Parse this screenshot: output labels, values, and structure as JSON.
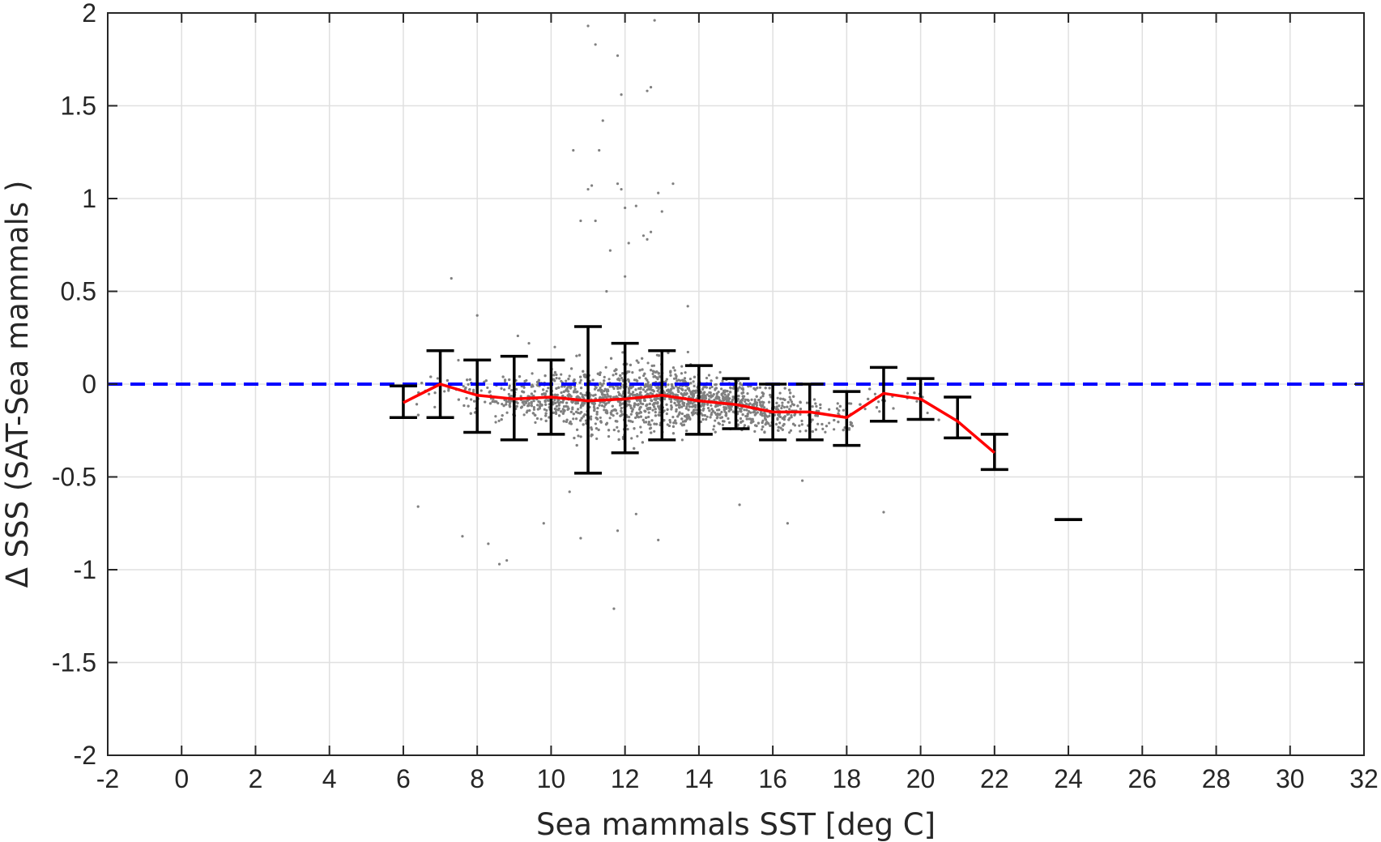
{
  "chart_data": {
    "type": "scatter",
    "xlabel": "Sea mammals  SST [deg C]",
    "ylabel": "Δ SSS (SAT-Sea mammals )",
    "xlim": [
      -2,
      32
    ],
    "ylim": [
      -2,
      2
    ],
    "xticks": [
      -2,
      0,
      2,
      4,
      6,
      8,
      10,
      12,
      14,
      16,
      18,
      20,
      22,
      24,
      26,
      28,
      30,
      32
    ],
    "yticks": [
      -2,
      -1.5,
      -1,
      -0.5,
      0,
      0.5,
      1,
      1.5,
      2
    ],
    "grid": true,
    "colors": {
      "scatter": "#808080",
      "mean_line": "#ff0000",
      "zero_line": "#0000ff",
      "error_bars": "#000000",
      "grid": "#e0e0e0",
      "axes": "#262626"
    },
    "reference_line": {
      "y": 0,
      "style": "dashed"
    },
    "mean_line": {
      "x": [
        6,
        7,
        8,
        9,
        10,
        11,
        12,
        13,
        14,
        15,
        16,
        17,
        18,
        19,
        20,
        21,
        22
      ],
      "y": [
        -0.1,
        0.0,
        -0.06,
        -0.08,
        -0.07,
        -0.09,
        -0.08,
        -0.06,
        -0.09,
        -0.11,
        -0.15,
        -0.15,
        -0.18,
        -0.05,
        -0.08,
        -0.2,
        -0.37
      ]
    },
    "error_bars": [
      {
        "x": 6,
        "lower": -0.18,
        "upper": -0.01
      },
      {
        "x": 7,
        "lower": -0.18,
        "upper": 0.18
      },
      {
        "x": 8,
        "lower": -0.26,
        "upper": 0.13
      },
      {
        "x": 9,
        "lower": -0.3,
        "upper": 0.15
      },
      {
        "x": 10,
        "lower": -0.27,
        "upper": 0.13
      },
      {
        "x": 11,
        "lower": -0.48,
        "upper": 0.31
      },
      {
        "x": 12,
        "lower": -0.37,
        "upper": 0.22
      },
      {
        "x": 13,
        "lower": -0.3,
        "upper": 0.18
      },
      {
        "x": 14,
        "lower": -0.27,
        "upper": 0.1
      },
      {
        "x": 15,
        "lower": -0.24,
        "upper": 0.03
      },
      {
        "x": 16,
        "lower": -0.3,
        "upper": 0.0
      },
      {
        "x": 17,
        "lower": -0.3,
        "upper": 0.0
      },
      {
        "x": 18,
        "lower": -0.33,
        "upper": -0.04
      },
      {
        "x": 19,
        "lower": -0.2,
        "upper": 0.09
      },
      {
        "x": 20,
        "lower": -0.19,
        "upper": 0.03
      },
      {
        "x": 21,
        "lower": -0.29,
        "upper": -0.07
      },
      {
        "x": 22,
        "lower": -0.46,
        "upper": -0.27
      },
      {
        "x": 24,
        "lower": -0.73,
        "upper": -0.73
      }
    ],
    "scatter_outliers": {
      "x": [
        11.0,
        11.2,
        11.8,
        12.8,
        11.4,
        11.9,
        12.6,
        12.7,
        11.3,
        10.6,
        11.1,
        11.8,
        11.9,
        12.3,
        12.5,
        12.9,
        13.3,
        12.0,
        12.1,
        12.6,
        11.2,
        13.0,
        10.8,
        11.6,
        12.7,
        11.0,
        7.3,
        8.0,
        9.1,
        9.4,
        10.1,
        13.7,
        12.0,
        11.5,
        10.5,
        8.3,
        8.8,
        9.8,
        11.8,
        12.9,
        16.4,
        19.0,
        10.8,
        12.3,
        6.4,
        11.7,
        8.6,
        7.6,
        15.1,
        16.8
      ],
      "y": [
        1.93,
        1.83,
        1.77,
        1.96,
        1.42,
        1.56,
        1.58,
        1.6,
        1.26,
        1.26,
        1.07,
        1.08,
        1.05,
        0.96,
        0.8,
        1.03,
        1.08,
        0.95,
        0.76,
        0.78,
        0.88,
        0.93,
        0.88,
        0.72,
        0.82,
        1.05,
        0.57,
        0.37,
        0.26,
        0.22,
        0.2,
        0.42,
        0.58,
        0.5,
        -0.58,
        -0.86,
        -0.95,
        -0.75,
        -0.79,
        -0.84,
        -0.75,
        -0.69,
        -0.83,
        -0.7,
        -0.66,
        -1.21,
        -0.97,
        -0.82,
        -0.65,
        -0.52
      ]
    }
  }
}
